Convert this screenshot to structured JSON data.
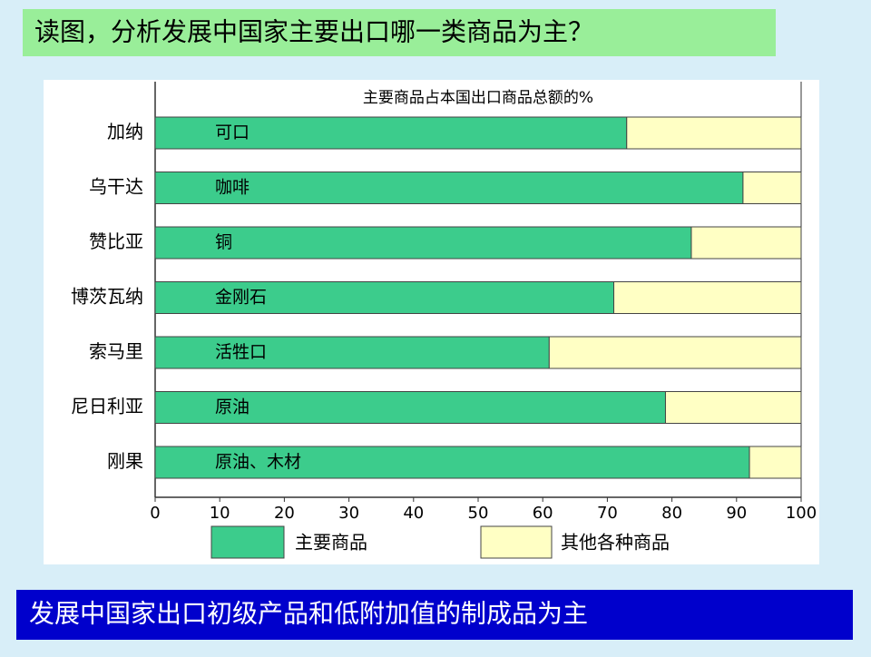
{
  "header": {
    "title": "读图，分析发展中国家主要出口哪一类商品为主？"
  },
  "chart_data": {
    "type": "stacked-barh",
    "title": "主要商品占本国出口商品总额的%",
    "categories": [
      "加纳",
      "乌干达",
      "赞比亚",
      "博茨瓦纳",
      "索马里",
      "尼日利亚",
      "刚果"
    ],
    "bar_labels": [
      "可口",
      "咖啡",
      "铜",
      "金刚石",
      "活牲口",
      "原油",
      "原油、木材"
    ],
    "series": [
      {
        "name": "主要商品",
        "color": "#3ccc8c",
        "values": [
          73,
          91,
          83,
          71,
          61,
          79,
          92
        ]
      },
      {
        "name": "其他各种商品",
        "color": "#ffffc4",
        "values": [
          27,
          9,
          17,
          29,
          39,
          21,
          8
        ]
      }
    ],
    "xlim": [
      0,
      100
    ],
    "xticks": [
      0,
      10,
      20,
      30,
      40,
      50,
      60,
      70,
      80,
      90,
      100
    ]
  },
  "footer": {
    "text": "发展中国家出口初级产品和低附加值的制成品为主"
  }
}
